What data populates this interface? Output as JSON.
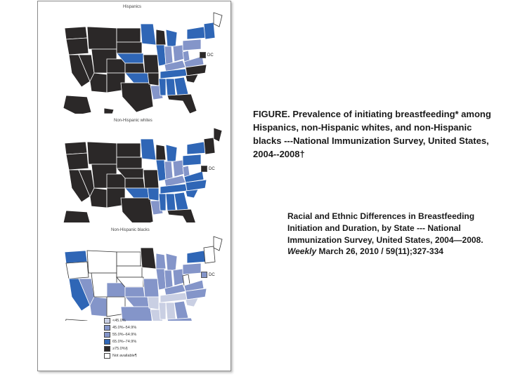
{
  "maps": [
    {
      "title": "Hispanics",
      "dc_label": "DC",
      "states": {
        "west": "dark",
        "plains": "dark",
        "mn": "blue",
        "wi": "dark",
        "mi": "blue",
        "il": "blue",
        "in": "light",
        "oh": "light",
        "pa": "light",
        "ny": "blue",
        "ne": "blue",
        "me": "white",
        "ky": "light",
        "tn": "blue",
        "ok": "blue",
        "ar": "dark",
        "la": "light",
        "ms": "blue",
        "al": "blue",
        "ga": "blue",
        "sc": "dark",
        "nc": "dark",
        "va": "light",
        "wv": "light",
        "tx": "dark",
        "fl": "dark",
        "ak": "dark",
        "hi": "dark",
        "dc": "dark"
      }
    },
    {
      "title": "Non-Hispanic whites",
      "dc_label": "DC",
      "states": {
        "west": "dark",
        "plains": "dark",
        "mn": "blue",
        "wi": "dark",
        "mi": "blue",
        "il": "blue",
        "in": "light",
        "oh": "light",
        "pa": "blue",
        "ny": "blue",
        "ne": "dark",
        "me": "dark",
        "ky": "light",
        "tn": "blue",
        "ok": "blue",
        "ar": "blue",
        "la": "light",
        "ms": "blue",
        "al": "blue",
        "ga": "blue",
        "sc": "blue",
        "nc": "blue",
        "va": "blue",
        "wv": "light",
        "tx": "dark",
        "fl": "dark",
        "ak": "dark",
        "hi": "dark",
        "dc": "dark"
      }
    },
    {
      "title": "Non-Hispanic blacks",
      "dc_label": "DC",
      "states": {
        "west": "white",
        "plains": "white",
        "mn": "dark",
        "wi": "light",
        "mi": "light",
        "il": "light",
        "in": "light",
        "oh": "light",
        "pa": "light",
        "ny": "blue",
        "ne": "white",
        "me": "white",
        "ky": "light",
        "tn": "pale",
        "ok": "light",
        "ar": "pale",
        "la": "pale",
        "ms": "pale",
        "al": "pale",
        "ga": "light",
        "sc": "pale",
        "nc": "light",
        "va": "light",
        "wv": "white",
        "tx": "light",
        "fl": "light",
        "ak": "white",
        "hi": "white",
        "dc": "light",
        "ca": "blue",
        "wa": "blue",
        "nv": "light",
        "az": "light",
        "co": "light",
        "ks": "light",
        "mo": "light"
      }
    }
  ],
  "legend": [
    {
      "label": "<45.0%",
      "key": "pale"
    },
    {
      "label": "45.0%–54.9%",
      "key": "light"
    },
    {
      "label": "55.0%–64.9%",
      "key": "light"
    },
    {
      "label": "65.0%–74.9%",
      "key": "blue"
    },
    {
      "label": "≥75.0%§",
      "key": "dark"
    },
    {
      "label": "Not available¶",
      "key": "white"
    }
  ],
  "colors": {
    "dark": "#2b2828",
    "blue": "#2f66b6",
    "light": "#8495c9",
    "pale": "#c9cfe3",
    "white": "#ffffff",
    "outline": "#ffffff",
    "outline_white": "#333333"
  },
  "caption": "FIGURE. Prevalence of initiating breastfeeding* among Hispanics, non-Hispanic whites, and non-Hispanic blacks ---National Immunization Survey, United States, 2004--2008†",
  "source_main": "Racial and Ethnic Differences in Breastfeeding Initiation and Duration, by State --- National Immunization Survey, United States, 2004—2008.",
  "source_journal": "Weekly",
  "source_tail": "March 26, 2010 / 59(11);327-334"
}
